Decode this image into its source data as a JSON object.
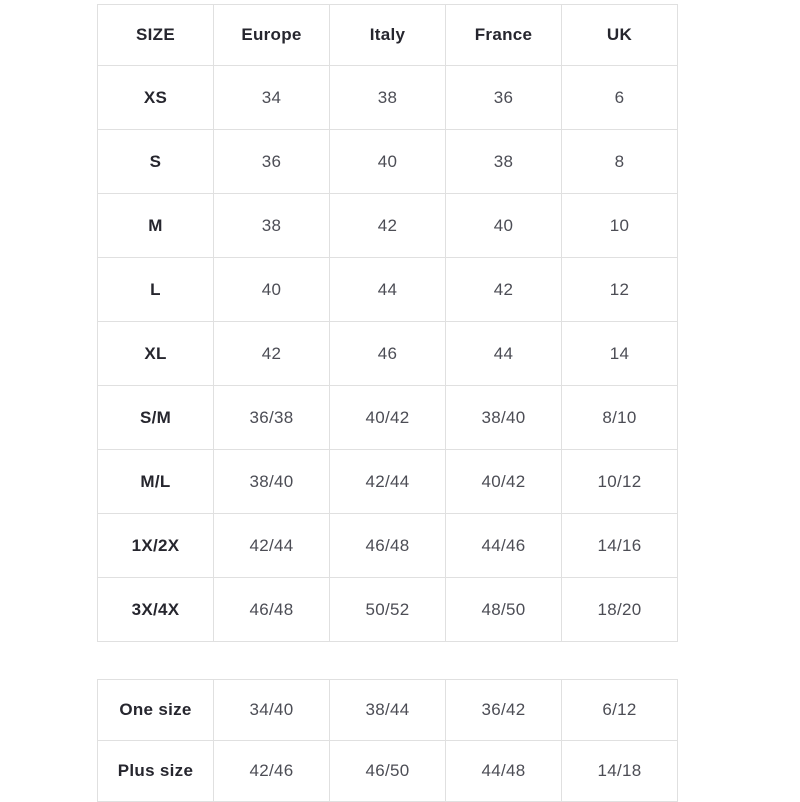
{
  "colors": {
    "background": "#ffffff",
    "border": "#e0e0e0",
    "header_text": "#26262e",
    "value_text": "#4c4d55"
  },
  "size_chart": {
    "headers": [
      "SIZE",
      "Europe",
      "Italy",
      "France",
      "UK"
    ],
    "rows": [
      {
        "label": "XS",
        "values": [
          "34",
          "38",
          "36",
          "6"
        ]
      },
      {
        "label": "S",
        "values": [
          "36",
          "40",
          "38",
          "8"
        ]
      },
      {
        "label": "M",
        "values": [
          "38",
          "42",
          "40",
          "10"
        ]
      },
      {
        "label": "L",
        "values": [
          "40",
          "44",
          "42",
          "12"
        ]
      },
      {
        "label": "XL",
        "values": [
          "42",
          "46",
          "44",
          "14"
        ]
      },
      {
        "label": "S/M",
        "values": [
          "36/38",
          "40/42",
          "38/40",
          "8/10"
        ]
      },
      {
        "label": "M/L",
        "values": [
          "38/40",
          "42/44",
          "40/42",
          "10/12"
        ]
      },
      {
        "label": "1X/2X",
        "values": [
          "42/44",
          "46/48",
          "44/46",
          "14/16"
        ]
      },
      {
        "label": "3X/4X",
        "values": [
          "46/48",
          "50/52",
          "48/50",
          "18/20"
        ]
      }
    ]
  },
  "special_sizes": {
    "rows": [
      {
        "label": "One size",
        "values": [
          "34/40",
          "38/44",
          "36/42",
          "6/12"
        ]
      },
      {
        "label": "Plus size",
        "values": [
          "42/46",
          "46/50",
          "44/48",
          "14/18"
        ]
      }
    ]
  },
  "chart_data": [
    {
      "type": "table",
      "columns": [
        "SIZE",
        "Europe",
        "Italy",
        "France",
        "UK"
      ],
      "rows": [
        [
          "XS",
          "34",
          "38",
          "36",
          "6"
        ],
        [
          "S",
          "36",
          "40",
          "38",
          "8"
        ],
        [
          "M",
          "38",
          "42",
          "40",
          "10"
        ],
        [
          "L",
          "40",
          "44",
          "42",
          "12"
        ],
        [
          "XL",
          "42",
          "46",
          "44",
          "14"
        ],
        [
          "S/M",
          "36/38",
          "40/42",
          "38/40",
          "8/10"
        ],
        [
          "M/L",
          "38/40",
          "42/44",
          "40/42",
          "10/12"
        ],
        [
          "1X/2X",
          "42/44",
          "46/48",
          "44/46",
          "14/16"
        ],
        [
          "3X/4X",
          "46/48",
          "50/52",
          "48/50",
          "18/20"
        ]
      ],
      "layout": {
        "grid": true,
        "header_row": true,
        "bold_first_column": true
      }
    },
    {
      "type": "table",
      "columns": [],
      "rows": [
        [
          "One size",
          "34/40",
          "38/44",
          "36/42",
          "6/12"
        ],
        [
          "Plus size",
          "42/46",
          "46/50",
          "44/48",
          "14/18"
        ]
      ],
      "layout": {
        "grid": true,
        "header_row": false,
        "bold_first_column": true
      }
    }
  ]
}
